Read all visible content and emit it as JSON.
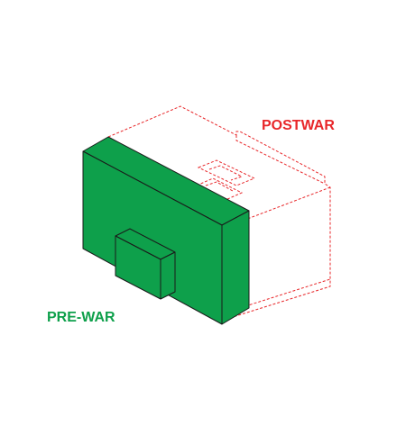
{
  "labels": {
    "postwar": "POSTWAR",
    "prewar": "PRE-WAR"
  },
  "colors": {
    "postwar_dashed_outline": "#e8272a",
    "postwar_label": "#e8272a",
    "prewar_fill": "#0ea04b",
    "prewar_fill_dark": "#0b8a40",
    "prewar_label": "#0ea04b",
    "edge_stroke": "#1a1a1a",
    "background": "#ffffff"
  }
}
